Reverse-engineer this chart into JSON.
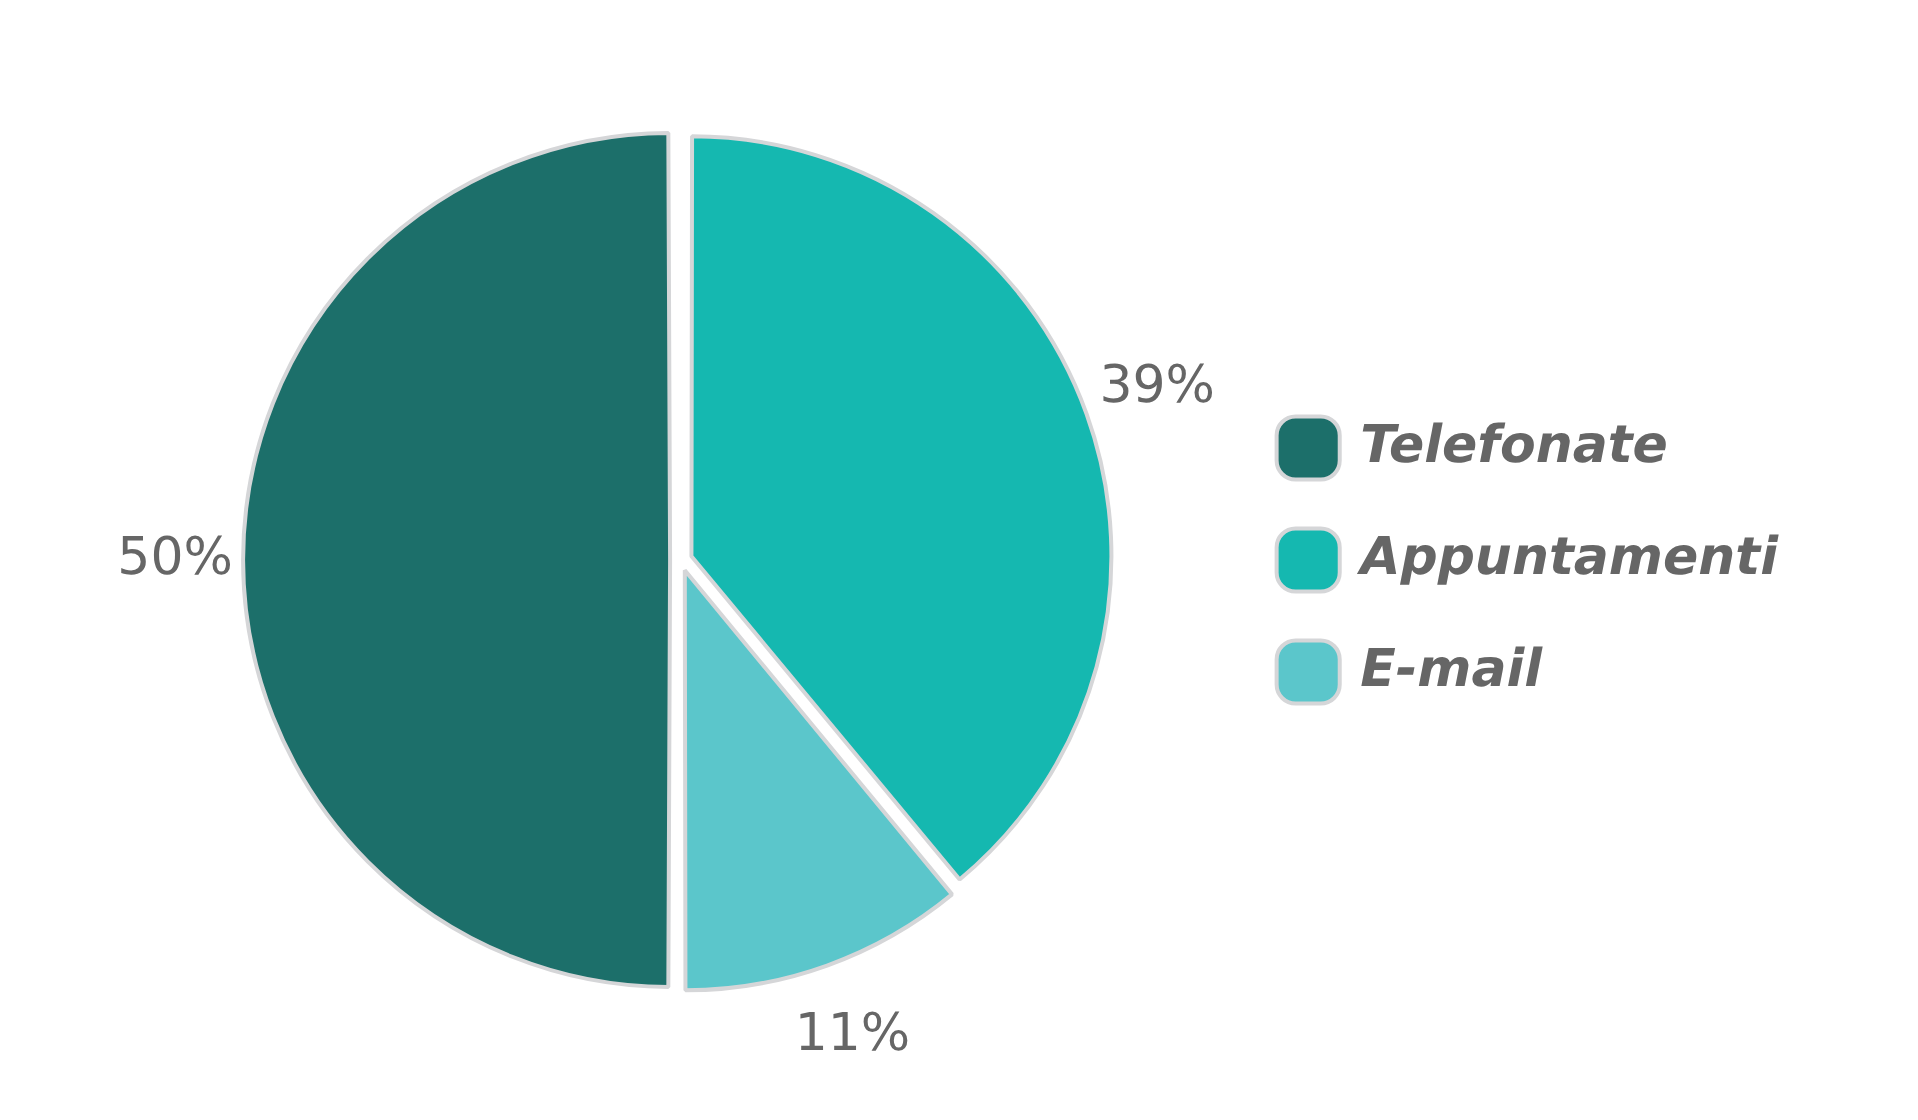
{
  "chart_data": {
    "type": "pie",
    "categories": [
      "Telefonate",
      "Appuntamenti",
      "E-mail"
    ],
    "values": [
      50,
      39,
      11
    ],
    "colors": [
      "#1c6f6a",
      "#15b8b0",
      "#5bc6cb"
    ],
    "value_labels": [
      "50%",
      "39%",
      "11%"
    ],
    "legend": "right"
  }
}
